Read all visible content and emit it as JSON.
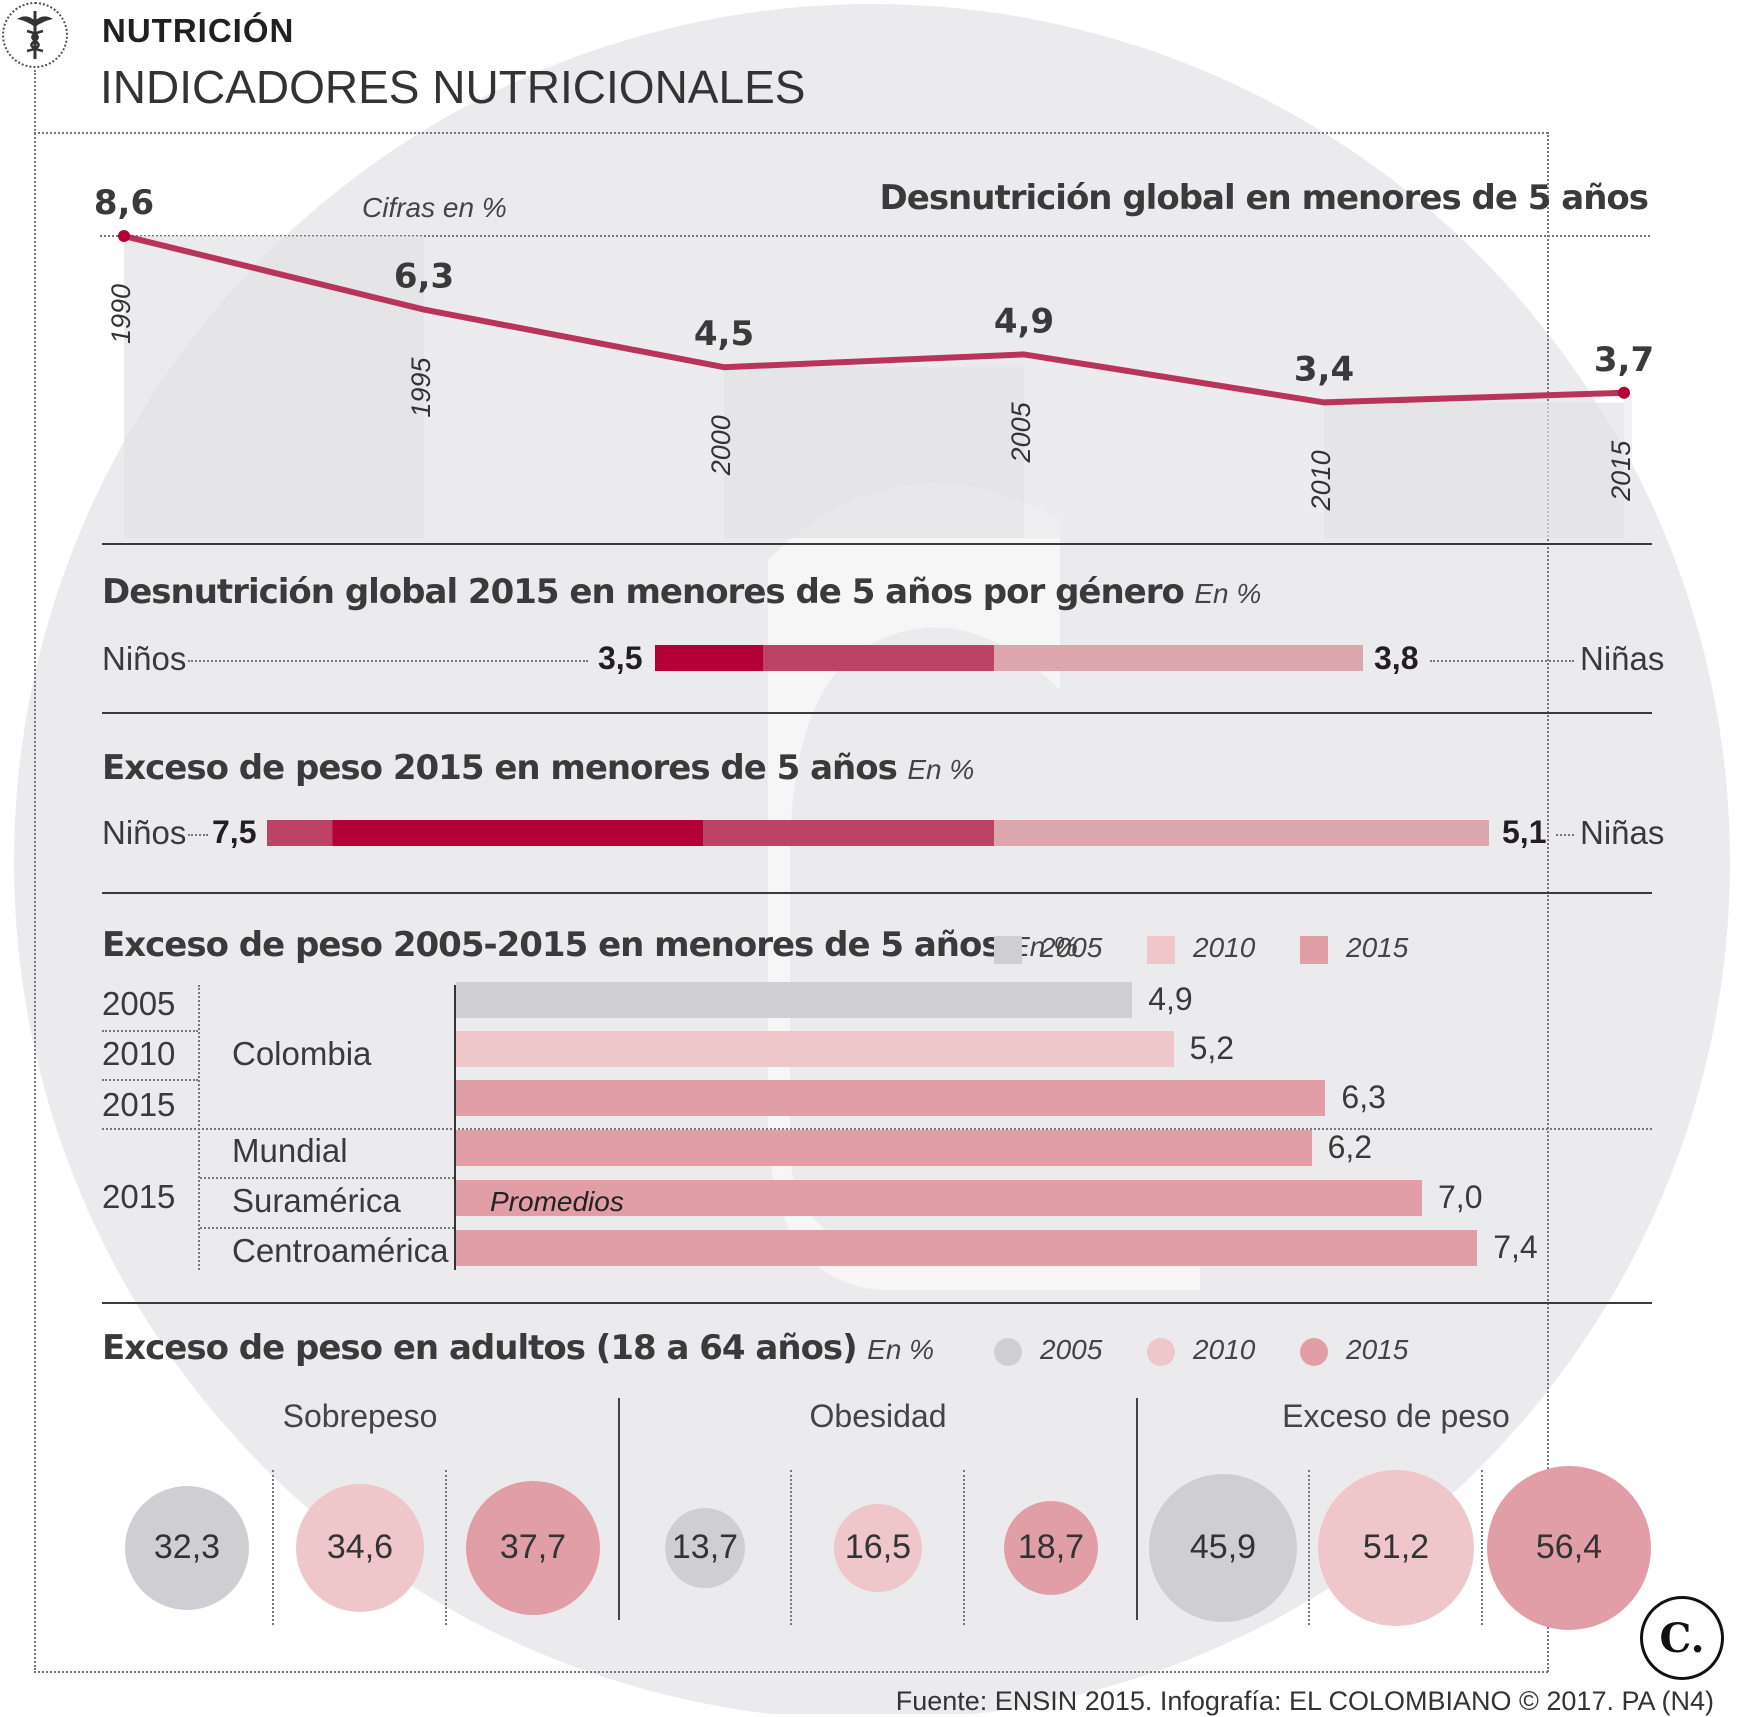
{
  "header": {
    "section": "NUTRICIÓN",
    "title": "INDICADORES NUTRICIONALES"
  },
  "colors": {
    "accent": "#b30037",
    "y2005": "#cfcfd3",
    "y2010": "#efc6c9",
    "y2015": "#e29ea6",
    "ninas": "#dba6ac",
    "ninos_light": "#bd4366"
  },
  "chart_data": [
    {
      "type": "line",
      "title": "Desnutrición global en menores de 5 años",
      "subtitle": "Cifras en %",
      "x": [
        "1990",
        "1995",
        "2000",
        "2005",
        "2010",
        "2015"
      ],
      "values": [
        8.6,
        6.3,
        4.5,
        4.9,
        3.4,
        3.7
      ],
      "value_labels": [
        "8,6",
        "6,3",
        "4,5",
        "4,9",
        "3,4",
        "3,7"
      ],
      "ylim": [
        0,
        10
      ]
    },
    {
      "type": "bar",
      "title": "Desnutrición global 2015 en menores de 5 años por género",
      "unit": "En %",
      "categories": [
        "Niños",
        "Niñas"
      ],
      "values": [
        3.5,
        3.8
      ],
      "value_labels": [
        "3,5",
        "3,8"
      ]
    },
    {
      "type": "bar",
      "title": "Exceso de peso 2015 en menores de 5 años",
      "unit": "En %",
      "categories": [
        "Niños",
        "Niñas"
      ],
      "values": [
        7.5,
        5.1
      ],
      "value_labels": [
        "7,5",
        "5,1"
      ]
    },
    {
      "type": "bar",
      "title": "Exceso de peso 2005-2015 en menores de 5 años",
      "unit": "En %",
      "legend": [
        "2005",
        "2010",
        "2015"
      ],
      "annotation": "Promedios",
      "rows": [
        {
          "year": "2005",
          "region": "Colombia",
          "value": 4.9,
          "label": "4,9",
          "series": "2005"
        },
        {
          "year": "2010",
          "region": "Colombia",
          "value": 5.2,
          "label": "5,2",
          "series": "2010"
        },
        {
          "year": "2015",
          "region": "Colombia",
          "value": 6.3,
          "label": "6,3",
          "series": "2015"
        },
        {
          "year": "2015",
          "region": "Mundial",
          "value": 6.2,
          "label": "6,2",
          "series": "2015"
        },
        {
          "year": "2015",
          "region": "Suramérica",
          "value": 7.0,
          "label": "7,0",
          "series": "2015"
        },
        {
          "year": "2015",
          "region": "Centroamérica",
          "value": 7.4,
          "label": "7,4",
          "series": "2015"
        }
      ],
      "year_labels": [
        "2005",
        "2010",
        "2015",
        "2015"
      ],
      "region_labels": [
        "Colombia",
        "Mundial",
        "Suramérica",
        "Centroamérica"
      ]
    },
    {
      "type": "bubble",
      "title": "Exceso de peso en adultos (18 a 64 años)",
      "unit": "En %",
      "legend": [
        "2005",
        "2010",
        "2015"
      ],
      "groups": [
        {
          "name": "Sobrepeso",
          "values": [
            32.3,
            34.6,
            37.7
          ],
          "labels": [
            "32,3",
            "34,6",
            "37,7"
          ]
        },
        {
          "name": "Obesidad",
          "values": [
            13.7,
            16.5,
            18.7
          ],
          "labels": [
            "13,7",
            "16,5",
            "18,7"
          ]
        },
        {
          "name": "Exceso de peso",
          "values": [
            45.9,
            51.2,
            56.4
          ],
          "labels": [
            "45,9",
            "51,2",
            "56,4"
          ]
        }
      ]
    }
  ],
  "footer": {
    "source": "Fuente: ENSIN 2015. Infografía: EL COLOMBIANO © 2017. PA (N4)",
    "logo": "C."
  },
  "icons": {
    "caduceus": "caduceus-icon"
  }
}
